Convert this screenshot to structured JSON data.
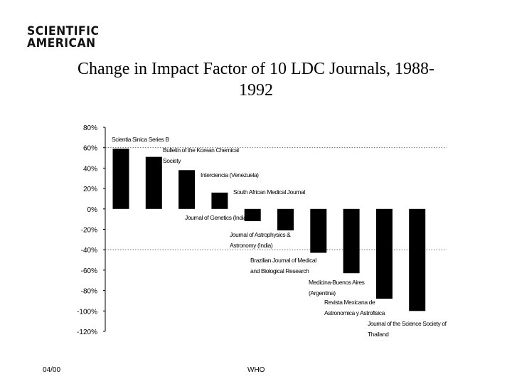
{
  "logo": {
    "line1": "SCIENTIFIC",
    "line2": "AMERICAN"
  },
  "title": {
    "line1": "Change in Impact Factor of 10 LDC Journals, 1988-",
    "line2": "1992"
  },
  "footer": {
    "date": "04/00",
    "source": "WHO"
  },
  "chart_data": {
    "type": "bar",
    "title": "Change in Impact Factor of 10 LDC Journals, 1988-1992",
    "xlabel": "",
    "ylabel": "",
    "ylim": [
      -120,
      80
    ],
    "ytick_labels": [
      "80%",
      "60%",
      "40%",
      "20%",
      "0%",
      "-20%",
      "-40%",
      "-60%",
      "-80%",
      "-100%",
      "-120%"
    ],
    "ytick_values": [
      80,
      60,
      40,
      20,
      0,
      -20,
      -40,
      -60,
      -80,
      -100,
      -120
    ],
    "reference_lines": [
      60,
      -40
    ],
    "categories": [
      [
        "Scientia Sinica Series B"
      ],
      [
        "Bulletin of the Korean Chemical",
        "Society"
      ],
      [
        "Interciencia (Venezuela)"
      ],
      [
        "South African Medical Journal"
      ],
      [
        "Journal of Genetics (India)"
      ],
      [
        "Journal of Astrophysics &",
        "Astronomy (India)"
      ],
      [
        "Brazilian Journal of Medical",
        "and Biological Research"
      ],
      [
        "Medicina-Buenos Aires",
        "(Argentina)"
      ],
      [
        "Revista Mexicana de",
        "Astronomica y Astrofisica"
      ],
      [
        "Journal of the Science Society of",
        "Thailand"
      ]
    ],
    "values": [
      59,
      51,
      38,
      16,
      -12,
      -21,
      -43,
      -63,
      -88,
      -100
    ],
    "bar_color": "#000000"
  }
}
